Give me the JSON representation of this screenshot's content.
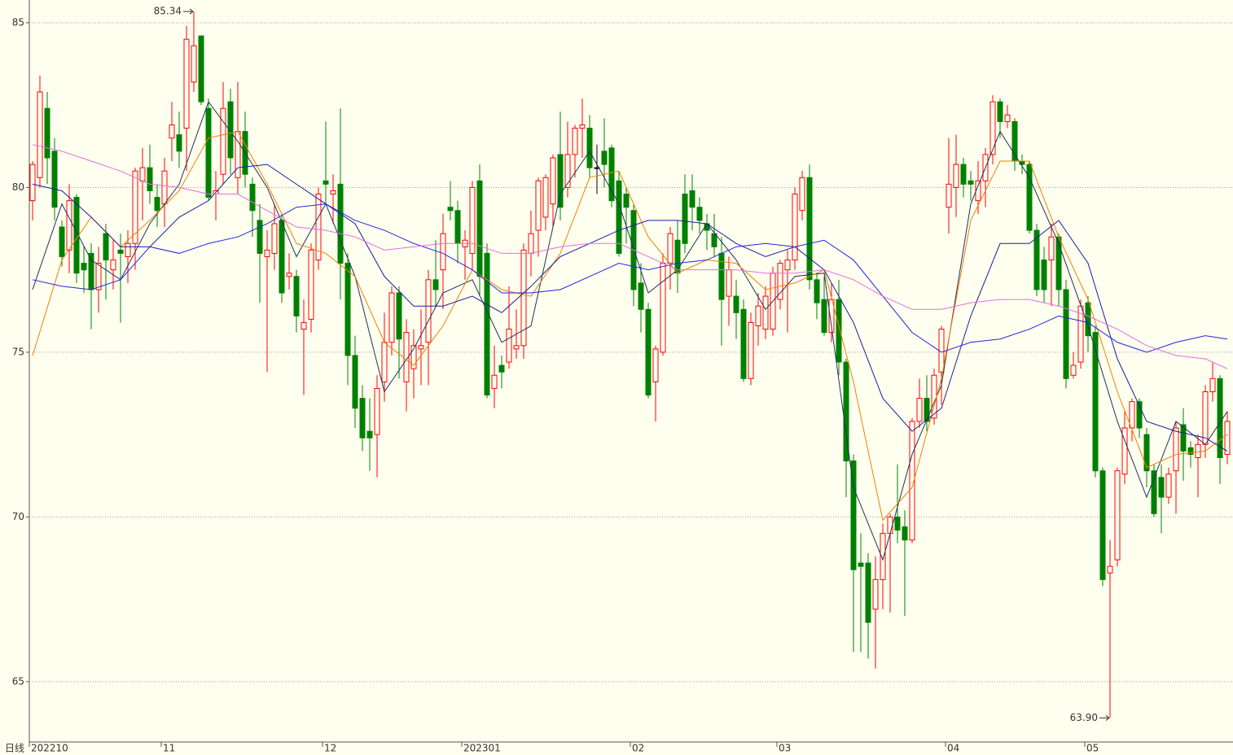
{
  "chart_data": {
    "type": "candlestick",
    "period_label": "日线",
    "categories": [
      "202210",
      null,
      null,
      null,
      null,
      null,
      null,
      null,
      null,
      null,
      null,
      null,
      null,
      null,
      null,
      null,
      null,
      null,
      "11",
      null,
      null,
      null,
      null,
      null,
      null,
      null,
      null,
      null,
      null,
      null,
      null,
      null,
      null,
      null,
      null,
      null,
      null,
      null,
      null,
      null,
      "12",
      null,
      null,
      null,
      null,
      null,
      null,
      null,
      null,
      null,
      null,
      null,
      null,
      null,
      null,
      null,
      null,
      null,
      null,
      "202301",
      null,
      null,
      null,
      null,
      null,
      null,
      null,
      null,
      null,
      null,
      null,
      null,
      null,
      null,
      null,
      null,
      null,
      null,
      null,
      null,
      null,
      null,
      "02",
      null,
      null,
      null,
      null,
      null,
      null,
      null,
      null,
      null,
      null,
      null,
      null,
      null,
      null,
      null,
      null,
      null,
      null,
      null,
      "03",
      null,
      null,
      null,
      null,
      null,
      null,
      null,
      null,
      null,
      null,
      null,
      null,
      null,
      null,
      null,
      null,
      null,
      null,
      null,
      null,
      null,
      null,
      "04",
      null,
      null,
      null,
      null,
      null,
      null,
      null,
      null,
      null,
      null,
      null,
      null,
      null,
      null,
      null,
      null,
      null,
      null,
      "05",
      null,
      null,
      null,
      null,
      null,
      null,
      null,
      null,
      null,
      null,
      null,
      null,
      null,
      null,
      null,
      null,
      null,
      null,
      null
    ],
    "open": [
      79.6,
      80.3,
      82.4,
      81.1,
      78.8,
      78.1,
      79.7,
      77.7,
      78.0,
      76.9,
      78.6,
      77.5,
      78.1,
      77.9,
      78.3,
      80.2,
      80.6,
      79.7,
      79.5,
      81.5,
      81.6,
      81.8,
      83.2,
      84.6,
      82.4,
      79.8,
      80.4,
      82.6,
      80.3,
      81.7,
      80.1,
      79.0,
      77.9,
      78.0,
      79.0,
      77.3,
      77.3,
      75.7,
      76.0,
      77.8,
      80.2,
      79.8,
      80.1,
      77.7,
      74.9,
      73.6,
      72.6,
      72.5,
      74.1,
      75.3,
      76.8,
      74.1,
      74.5,
      75.1,
      75.3,
      77.2,
      77.5,
      79.4,
      79.3,
      78.2,
      78.0,
      80.2,
      78.0,
      73.9,
      74.6,
      74.7,
      75.1,
      75.2,
      78.0,
      78.7,
      79.1,
      79.5,
      81.0,
      80.0,
      81.0,
      81.8,
      81.8,
      80.6,
      81.1,
      81.2,
      80.2,
      79.8,
      79.3,
      77.1,
      76.3,
      74.1,
      75.0,
      77.7,
      78.4,
      79.8,
      79.9,
      79.4,
      78.9,
      78.6,
      78.0,
      76.7,
      76.7,
      76.3,
      74.2,
      75.8,
      75.7,
      75.7,
      76.6,
      77.5,
      77.8,
      79.3,
      80.3,
      77.2,
      76.6,
      75.6,
      76.6,
      74.7,
      71.7,
      68.6,
      68.6,
      67.2,
      68.1,
      69.5,
      70.0,
      69.7,
      69.3,
      72.9,
      73.6,
      73.0,
      74.4,
      79.4,
      80.0,
      80.7,
      80.2,
      79.6,
      80.2,
      81.0,
      82.6,
      82.0,
      82.0,
      80.8,
      80.7,
      78.7,
      77.8,
      77.8,
      78.5,
      76.9,
      74.3,
      74.7,
      76.5,
      75.6,
      71.4,
      68.3,
      68.7,
      71.3,
      72.7,
      73.5,
      72.5,
      71.4,
      71.2,
      70.6,
      71.4,
      72.8,
      72.1,
      71.8,
      72.2,
      73.8,
      74.2,
      71.9
    ],
    "high": [
      80.8,
      83.4,
      82.9,
      81.5,
      79.0,
      80.1,
      79.8,
      78.2,
      78.3,
      78.2,
      78.9,
      78.4,
      78.6,
      78.7,
      80.6,
      81.2,
      81.3,
      80.1,
      80.9,
      82.6,
      82.3,
      84.9,
      85.34,
      84.6,
      82.7,
      80.5,
      83.2,
      83.0,
      83.2,
      82.3,
      80.3,
      79.5,
      78.7,
      79.5,
      79.2,
      78.0,
      77.5,
      76.6,
      78.3,
      80.0,
      82.0,
      80.4,
      82.4,
      78.0,
      75.5,
      74.0,
      73.6,
      74.3,
      76.2,
      77.0,
      77.0,
      76.0,
      75.7,
      76.3,
      77.5,
      78.4,
      79.2,
      80.2,
      79.6,
      78.7,
      80.2,
      80.7,
      78.3,
      75.2,
      74.9,
      77.0,
      76.3,
      78.3,
      79.3,
      80.3,
      80.4,
      81.0,
      82.3,
      82.0,
      81.9,
      82.7,
      82.2,
      81.3,
      82.1,
      81.3,
      80.5,
      80.0,
      79.5,
      77.7,
      76.5,
      75.2,
      78.0,
      78.8,
      79.0,
      80.4,
      80.4,
      79.7,
      79.2,
      79.2,
      78.5,
      77.9,
      77.2,
      76.6,
      76.2,
      76.8,
      77.0,
      77.6,
      77.8,
      78.1,
      80.0,
      80.5,
      80.7,
      77.4,
      77.3,
      77.1,
      77.2,
      74.8,
      71.9,
      69.5,
      68.9,
      68.8,
      69.8,
      70.1,
      71.6,
      70.2,
      73.0,
      74.2,
      74.3,
      74.5,
      75.8,
      81.5,
      81.6,
      80.9,
      80.5,
      80.8,
      81.2,
      82.8,
      82.7,
      82.5,
      82.1,
      81.0,
      80.8,
      78.9,
      78.2,
      78.9,
      78.6,
      77.2,
      75.0,
      76.6,
      76.7,
      75.8,
      71.5,
      69.3,
      71.5,
      73.2,
      73.6,
      73.6,
      72.7,
      71.6,
      71.6,
      71.5,
      72.9,
      73.3,
      72.3,
      72.5,
      74.0,
      74.7,
      74.3,
      73.2
    ],
    "low": [
      79.0,
      80.0,
      80.1,
      79.0,
      77.6,
      77.4,
      77.1,
      76.8,
      75.7,
      76.2,
      76.6,
      76.9,
      75.9,
      77.1,
      77.5,
      79.0,
      79.5,
      78.8,
      78.8,
      80.8,
      80.6,
      80.5,
      82.9,
      82.5,
      79.6,
      79.0,
      80.1,
      80.4,
      79.8,
      80.0,
      78.5,
      76.5,
      74.4,
      77.5,
      76.5,
      76.9,
      75.6,
      73.7,
      75.6,
      77.5,
      79.5,
      78.9,
      76.6,
      74.0,
      72.7,
      72.0,
      71.4,
      71.2,
      73.5,
      74.9,
      74.2,
      73.2,
      73.6,
      74.0,
      74.0,
      76.4,
      76.3,
      79.0,
      77.7,
      77.2,
      77.5,
      76.7,
      73.6,
      73.3,
      73.9,
      74.5,
      74.8,
      74.8,
      77.3,
      77.9,
      78.7,
      78.8,
      79.0,
      79.7,
      80.3,
      80.9,
      80.3,
      79.8,
      80.0,
      79.4,
      77.9,
      78.3,
      76.4,
      75.6,
      73.6,
      72.9,
      74.9,
      76.9,
      76.8,
      78.0,
      78.7,
      78.6,
      78.1,
      77.9,
      75.2,
      75.8,
      75.4,
      74.1,
      74.0,
      75.2,
      75.4,
      75.5,
      76.3,
      75.6,
      77.5,
      79.0,
      76.9,
      76.0,
      75.5,
      75.3,
      74.3,
      70.6,
      65.9,
      65.9,
      65.7,
      65.4,
      67.2,
      67.1,
      69.2,
      67.0,
      69.2,
      72.7,
      72.6,
      72.8,
      73.4,
      78.6,
      79.1,
      79.7,
      79.6,
      79.2,
      79.4,
      80.7,
      81.5,
      81.8,
      80.5,
      80.4,
      78.6,
      76.7,
      76.5,
      76.4,
      76.4,
      73.9,
      74.2,
      74.5,
      75.0,
      71.2,
      67.9,
      63.9,
      68.5,
      71.0,
      72.3,
      72.4,
      70.9,
      70.0,
      69.5,
      70.4,
      70.1,
      71.1,
      71.5,
      70.6,
      71.8,
      73.5,
      71.0,
      71.6
    ],
    "close": [
      80.7,
      82.9,
      80.9,
      79.4,
      77.9,
      79.6,
      77.4,
      77.5,
      76.9,
      77.7,
      77.8,
      77.8,
      78.0,
      78.3,
      80.5,
      80.6,
      79.9,
      79.3,
      80.5,
      81.9,
      81.1,
      84.5,
      84.3,
      82.6,
      79.7,
      79.9,
      82.4,
      80.9,
      81.7,
      80.4,
      79.3,
      78.0,
      78.1,
      78.9,
      76.8,
      77.4,
      76.1,
      75.9,
      78.1,
      79.8,
      80.1,
      79.9,
      77.7,
      74.9,
      73.3,
      72.4,
      72.4,
      73.9,
      75.3,
      76.8,
      75.4,
      75.6,
      75.2,
      75.2,
      77.2,
      76.9,
      78.6,
      79.3,
      78.3,
      78.4,
      80.0,
      77.3,
      73.7,
      74.3,
      74.4,
      75.7,
      75.2,
      78.1,
      78.6,
      80.2,
      80.3,
      80.9,
      79.4,
      81.0,
      81.8,
      81.9,
      80.6,
      80.6,
      80.7,
      79.6,
      78.0,
      79.4,
      76.9,
      76.3,
      73.7,
      75.1,
      77.7,
      78.6,
      77.4,
      78.3,
      79.4,
      79.0,
      78.7,
      78.2,
      76.6,
      77.5,
      76.2,
      74.2,
      75.9,
      76.4,
      76.7,
      77.4,
      77.7,
      77.8,
      79.8,
      80.3,
      77.2,
      76.5,
      75.6,
      76.6,
      74.7,
      71.7,
      68.4,
      68.5,
      66.8,
      68.1,
      69.5,
      70.0,
      69.6,
      69.3,
      72.9,
      73.6,
      72.9,
      74.3,
      75.7,
      80.1,
      80.7,
      80.1,
      80.1,
      80.2,
      81.0,
      82.6,
      82.0,
      82.2,
      80.8,
      80.7,
      78.7,
      76.9,
      76.9,
      78.5,
      76.9,
      74.2,
      74.6,
      76.4,
      75.5,
      71.4,
      68.1,
      68.5,
      71.4,
      72.7,
      73.5,
      72.7,
      71.4,
      70.1,
      70.6,
      71.3,
      72.7,
      72.0,
      71.9,
      72.2,
      73.8,
      74.2,
      71.8,
      72.9
    ],
    "up_color": "#ff0000",
    "down_color": "#008000",
    "flat_color": "#000000",
    "x": [
      0,
      4,
      8,
      12,
      16,
      20,
      24,
      28,
      32,
      36,
      40,
      44,
      48,
      52,
      56,
      60,
      64,
      68,
      72,
      76,
      80,
      84,
      88,
      92,
      96,
      100,
      104,
      108,
      112,
      116,
      120,
      124,
      128,
      132,
      136,
      140,
      144,
      148,
      152,
      156,
      160,
      163
    ],
    "series": [
      {
        "color": "#203060",
        "values": [
          76.9,
          79.5,
          77.8,
          77.2,
          78.9,
          80.1,
          82.6,
          81.4,
          80.0,
          77.9,
          79.5,
          77.3,
          73.8,
          75.1,
          76.8,
          77.2,
          75.3,
          75.8,
          79.8,
          81.1,
          79.5,
          76.8,
          77.5,
          78.9,
          77.8,
          76.3,
          77.3,
          77.4,
          70.9,
          68.7,
          71.9,
          74.0,
          79.5,
          81.7,
          80.3,
          78.3,
          75.8,
          72.9,
          70.6,
          72.9,
          72.2,
          73.2
        ]
      },
      {
        "color": "#f08000",
        "values": [
          74.9,
          77.8,
          79.1,
          78.2,
          79.0,
          79.9,
          81.5,
          81.7,
          80.1,
          78.3,
          78.0,
          77.3,
          75.3,
          74.6,
          75.8,
          77.5,
          76.9,
          76.7,
          78.0,
          80.3,
          80.5,
          78.5,
          77.4,
          77.8,
          77.7,
          76.9,
          77.1,
          77.5,
          74.1,
          69.9,
          70.9,
          74.2,
          79.0,
          80.8,
          80.8,
          78.5,
          76.6,
          73.8,
          71.5,
          71.9,
          72.0,
          72.5
        ]
      },
      {
        "color": "#1c1c9c",
        "values": [
          80.1,
          79.9,
          79.1,
          78.2,
          78.2,
          79.1,
          79.6,
          80.6,
          80.7,
          80.1,
          79.5,
          78.9,
          77.3,
          76.4,
          76.4,
          76.7,
          76.2,
          77.0,
          77.9,
          78.3,
          78.7,
          79.0,
          79.0,
          78.9,
          78.3,
          77.9,
          78.2,
          77.5,
          75.9,
          73.6,
          72.6,
          73.3,
          76.1,
          78.3,
          78.3,
          79.0,
          77.7,
          74.8,
          72.9,
          72.6,
          72.4,
          72.0
        ]
      },
      {
        "color": "#2424dc",
        "values": [
          77.2,
          77.0,
          76.9,
          77.2,
          78.2,
          78.0,
          78.3,
          78.5,
          78.9,
          79.4,
          79.5,
          79.0,
          78.7,
          78.3,
          78.0,
          77.5,
          76.8,
          76.8,
          76.9,
          77.3,
          77.7,
          77.5,
          77.7,
          77.8,
          78.2,
          78.3,
          78.2,
          78.4,
          77.8,
          76.7,
          75.6,
          75.0,
          75.3,
          75.4,
          75.7,
          76.1,
          75.9,
          75.3,
          75.0,
          75.3,
          75.5,
          75.4
        ]
      },
      {
        "color": "#e070e0",
        "values": [
          81.3,
          81.1,
          80.8,
          80.5,
          80.1,
          80.0,
          79.8,
          79.8,
          79.3,
          78.8,
          78.7,
          78.5,
          78.1,
          78.2,
          78.3,
          78.3,
          78.0,
          78.0,
          78.2,
          78.3,
          78.3,
          77.9,
          77.5,
          77.5,
          77.5,
          77.4,
          77.4,
          77.5,
          77.2,
          76.7,
          76.3,
          76.3,
          76.5,
          76.6,
          76.6,
          76.4,
          76.1,
          75.7,
          75.2,
          74.9,
          74.8,
          74.5
        ]
      }
    ],
    "annotations": [
      "85.34",
      "63.90"
    ],
    "ylim": [
      63.17,
      85.69
    ],
    "yticks": [
      65,
      70,
      75,
      80,
      85
    ],
    "grid": true
  }
}
